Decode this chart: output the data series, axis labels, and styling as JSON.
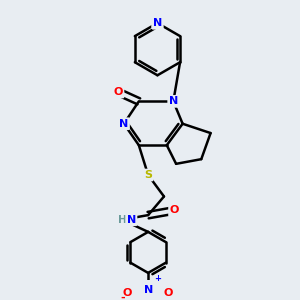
{
  "background_color": "#e8edf2",
  "atom_colors": {
    "N": "#0000ff",
    "O": "#ff0000",
    "S": "#b8b800",
    "C": "#000000",
    "H": "#6a9a9a"
  },
  "bond_color": "#000000",
  "bond_width": 1.8,
  "figsize": [
    3.0,
    3.0
  ],
  "dpi": 100
}
